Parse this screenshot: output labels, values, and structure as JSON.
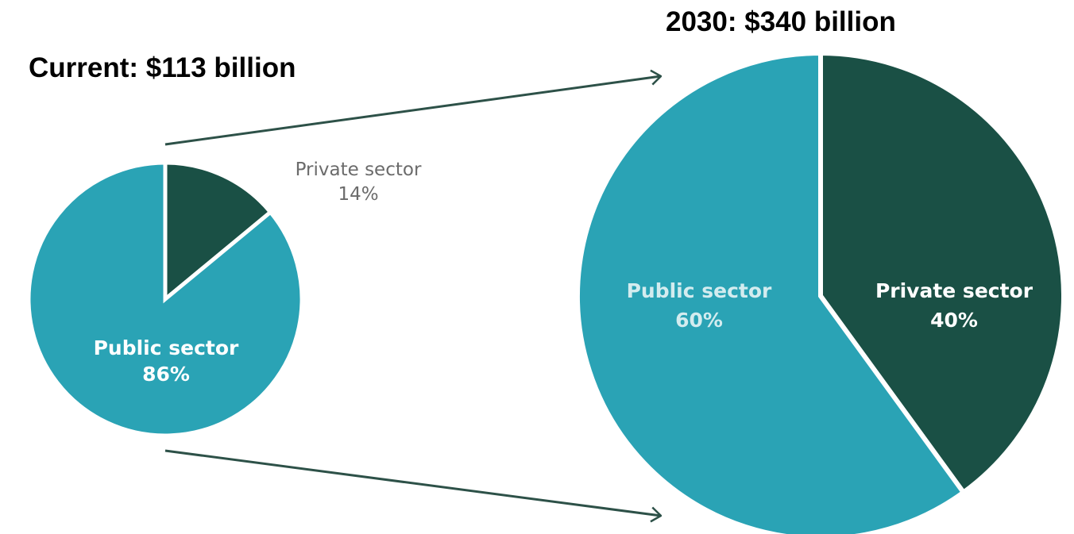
{
  "colors": {
    "public_sector": "#2aa3b5",
    "private_sector": "#1a5045",
    "arrow": "#2d5148",
    "outside_label": "#6b6b6b",
    "inside_label": "#ffffff",
    "inside_label_muted": "#d3ecef"
  },
  "chart_data": [
    {
      "type": "pie",
      "title": "Current: $113 billion",
      "slices": [
        {
          "label": "Private sector",
          "value": 14,
          "display": "14%"
        },
        {
          "label": "Public sector",
          "value": 86,
          "display": "86%"
        }
      ]
    },
    {
      "type": "pie",
      "title": "2030: $340 billion",
      "slices": [
        {
          "label": "Private sector",
          "value": 40,
          "display": "40%"
        },
        {
          "label": "Public sector",
          "value": 60,
          "display": "60%"
        }
      ]
    }
  ]
}
